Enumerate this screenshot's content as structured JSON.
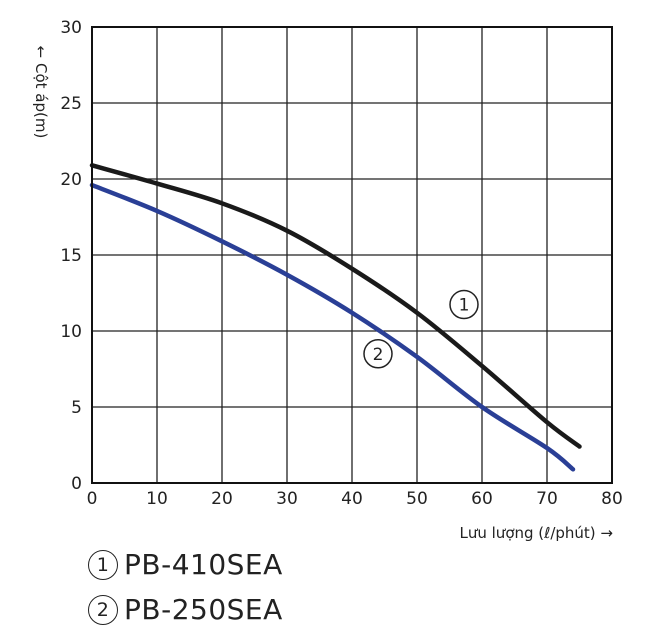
{
  "chart_data": {
    "type": "line",
    "xlabel": "Lưu lượng  (ℓ/phút) →",
    "ylabel": "← Cột áp(m)",
    "xlim": [
      0,
      80
    ],
    "ylim": [
      0,
      30
    ],
    "x_ticks": [
      "0",
      "10",
      "20",
      "30",
      "40",
      "50",
      "60",
      "70",
      "80"
    ],
    "y_ticks": [
      "0",
      "5",
      "10",
      "15",
      "20",
      "25",
      "30"
    ],
    "grid": true,
    "series": [
      {
        "name": "PB-410SEA",
        "marker": "1",
        "color": "#1a1a1a",
        "x": [
          0,
          10,
          20,
          30,
          40,
          50,
          60,
          70,
          75
        ],
        "y": [
          20.9,
          19.7,
          18.4,
          16.6,
          14.1,
          11.2,
          7.7,
          4.0,
          2.4
        ]
      },
      {
        "name": "PB-250SEA",
        "marker": "2",
        "color": "#2a3f96",
        "x": [
          0,
          10,
          20,
          30,
          40,
          50,
          60,
          70,
          74
        ],
        "y": [
          19.6,
          17.9,
          15.9,
          13.7,
          11.2,
          8.3,
          5.0,
          2.3,
          0.9
        ]
      }
    ]
  }
}
